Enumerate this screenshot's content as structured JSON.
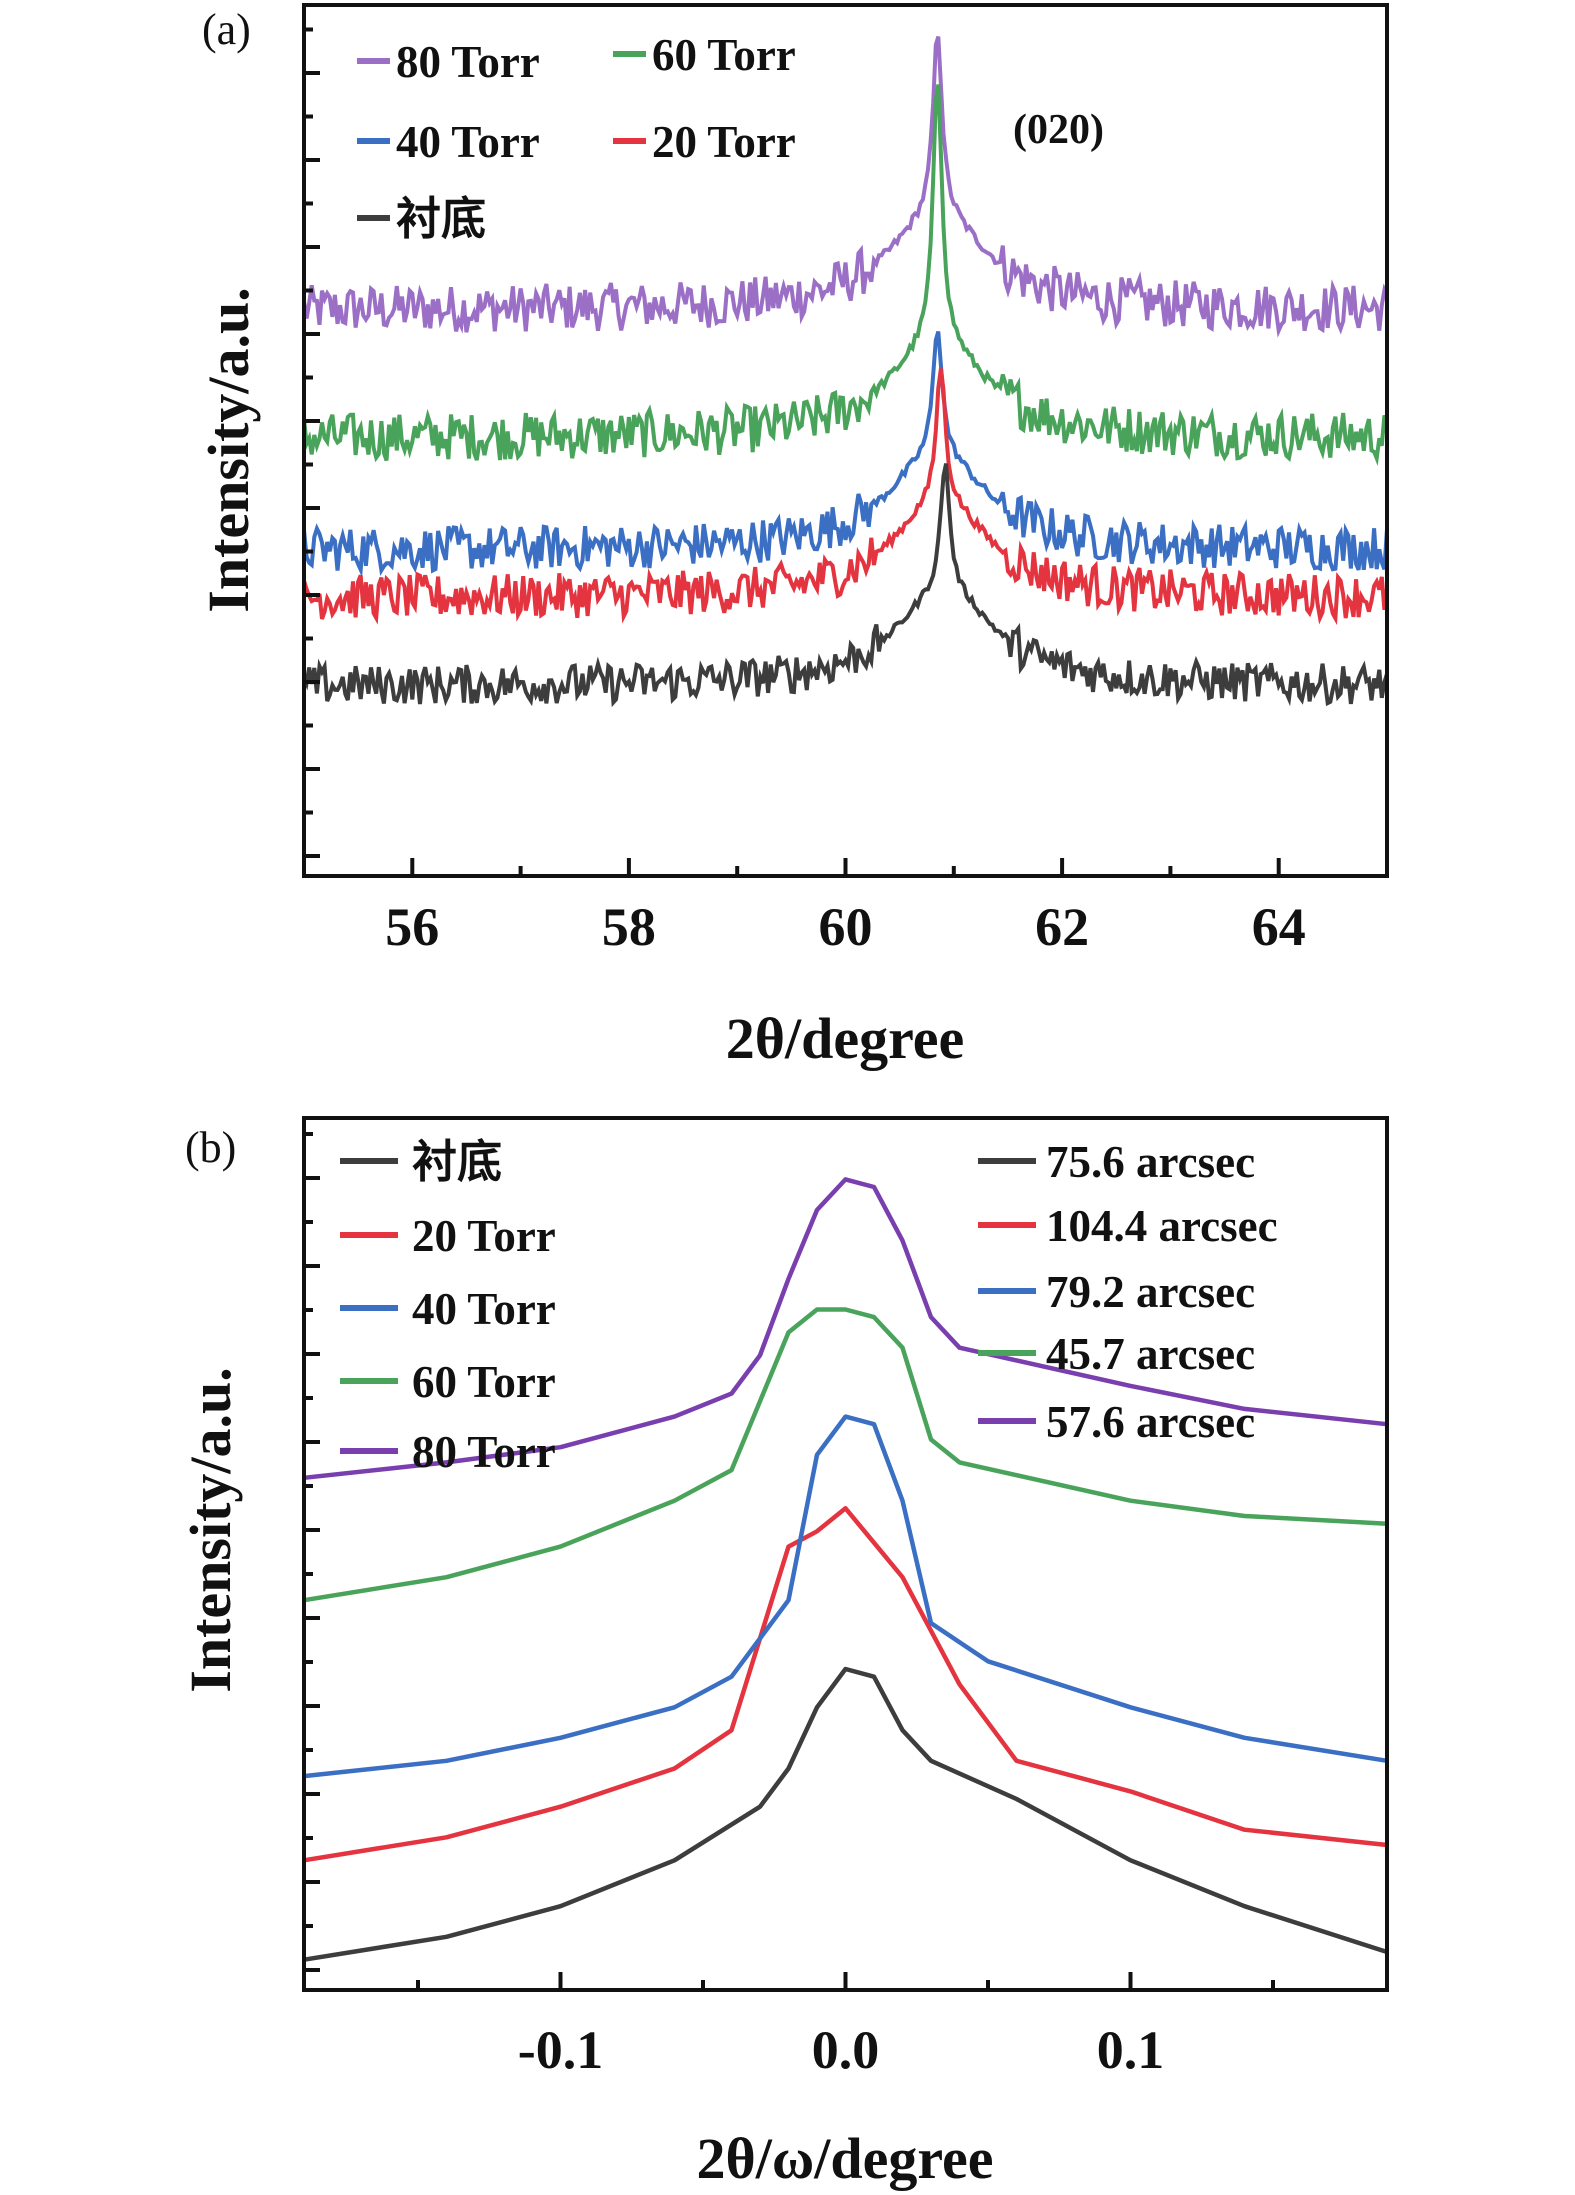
{
  "chart_data": [
    {
      "panel_label": "(a)",
      "type": "line",
      "xlabel": "2θ/degree",
      "ylabel": "Intensity/a.u.",
      "xlim": [
        55,
        65
      ],
      "xticks": [
        56,
        58,
        60,
        62,
        64
      ],
      "y_ticks_labeled": false,
      "annotation": "(020)",
      "legend_placement": "top-left",
      "series": [
        {
          "name": "80 Torr",
          "color": "#9b6fc6",
          "peak_x": 60.85,
          "peak_height": 1.0,
          "baseline": 0.65,
          "noise": 0.03
        },
        {
          "name": "60 Torr",
          "color": "#4aa35a",
          "peak_x": 60.85,
          "peak_height": 0.94,
          "baseline": 0.49,
          "noise": 0.03
        },
        {
          "name": "40 Torr",
          "color": "#3a6fc3",
          "peak_x": 60.85,
          "peak_height": 0.63,
          "baseline": 0.35,
          "noise": 0.028
        },
        {
          "name": "20 Torr",
          "color": "#e3343f",
          "peak_x": 60.88,
          "peak_height": 0.58,
          "baseline": 0.29,
          "noise": 0.028
        },
        {
          "name": "衬底",
          "color": "#3d3d3d",
          "peak_x": 60.92,
          "peak_height": 0.46,
          "baseline": 0.18,
          "noise": 0.025
        }
      ]
    },
    {
      "panel_label": "(b)",
      "type": "line",
      "xlabel": "2θ/ω/degree",
      "ylabel": "Intensity/a.u.",
      "xlim": [
        -0.19,
        0.19
      ],
      "xticks": [
        -0.1,
        0.0,
        0.1
      ],
      "xtick_labels": [
        "-0.1",
        "0.0",
        "0.1"
      ],
      "y_ticks_labeled": false,
      "legend_placement": "top-left",
      "fwhm_legend_placement": "top-right",
      "series": [
        {
          "name": "衬底",
          "fwhm": "75.6 arcsec",
          "color": "#3d3d3d",
          "x": [
            -0.19,
            -0.14,
            -0.1,
            -0.06,
            -0.03,
            -0.02,
            -0.01,
            0.0,
            0.01,
            0.02,
            0.03,
            0.06,
            0.1,
            0.14,
            0.19
          ],
          "y": [
            0.02,
            0.05,
            0.09,
            0.15,
            0.22,
            0.27,
            0.35,
            0.4,
            0.39,
            0.32,
            0.28,
            0.23,
            0.15,
            0.09,
            0.03
          ]
        },
        {
          "name": "20 Torr",
          "fwhm": "104.4 arcsec",
          "color": "#e3343f",
          "x": [
            -0.19,
            -0.14,
            -0.1,
            -0.06,
            -0.04,
            -0.03,
            -0.02,
            -0.01,
            0.0,
            0.02,
            0.04,
            0.06,
            0.1,
            0.14,
            0.19
          ],
          "y": [
            0.15,
            0.18,
            0.22,
            0.27,
            0.32,
            0.44,
            0.56,
            0.58,
            0.61,
            0.52,
            0.38,
            0.28,
            0.24,
            0.19,
            0.17
          ]
        },
        {
          "name": "40 Torr",
          "fwhm": "79.2 arcsec",
          "color": "#3a6fc3",
          "x": [
            -0.19,
            -0.14,
            -0.1,
            -0.06,
            -0.04,
            -0.02,
            -0.01,
            0.0,
            0.01,
            0.02,
            0.03,
            0.05,
            0.1,
            0.14,
            0.19
          ],
          "y": [
            0.26,
            0.28,
            0.31,
            0.35,
            0.39,
            0.49,
            0.68,
            0.73,
            0.72,
            0.62,
            0.46,
            0.41,
            0.35,
            0.31,
            0.28
          ]
        },
        {
          "name": "60 Torr",
          "fwhm": "45.7 arcsec",
          "color": "#4aa35a",
          "x": [
            -0.19,
            -0.14,
            -0.1,
            -0.06,
            -0.04,
            -0.03,
            -0.02,
            -0.01,
            0.0,
            0.01,
            0.02,
            0.03,
            0.04,
            0.1,
            0.14,
            0.19
          ],
          "y": [
            0.49,
            0.52,
            0.56,
            0.62,
            0.66,
            0.75,
            0.84,
            0.87,
            0.87,
            0.86,
            0.82,
            0.7,
            0.67,
            0.62,
            0.6,
            0.59
          ]
        },
        {
          "name": "80 Torr",
          "fwhm": "57.6 arcsec",
          "color": "#7a3fae",
          "x": [
            -0.19,
            -0.14,
            -0.1,
            -0.06,
            -0.04,
            -0.03,
            -0.02,
            -0.01,
            0.0,
            0.01,
            0.02,
            0.03,
            0.04,
            0.1,
            0.14,
            0.19
          ],
          "y": [
            0.65,
            0.67,
            0.69,
            0.73,
            0.76,
            0.81,
            0.91,
            1.0,
            1.04,
            1.03,
            0.96,
            0.86,
            0.82,
            0.77,
            0.74,
            0.72
          ]
        }
      ]
    }
  ]
}
